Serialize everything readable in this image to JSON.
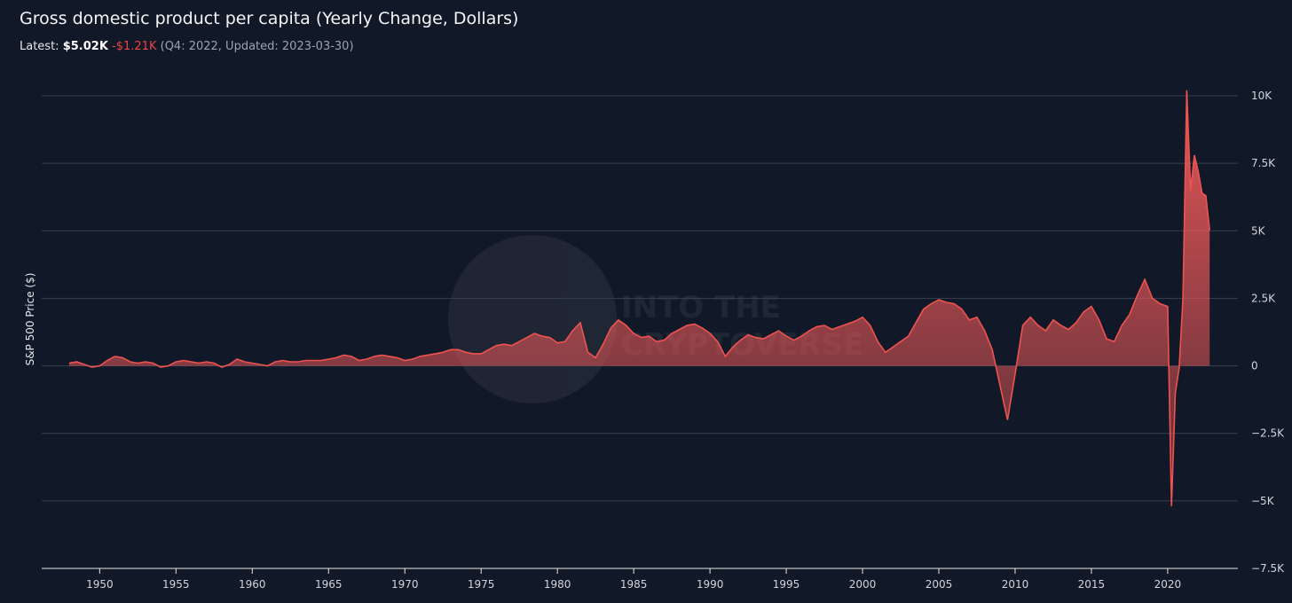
{
  "header": {
    "title": "Gross domestic product per capita (Yearly Change, Dollars)",
    "latest_label": "Latest:",
    "latest_value": "$5.02K",
    "latest_change": "-$1.21K",
    "latest_meta": "(Q4: 2022, Updated: 2023-03-30)"
  },
  "watermark": {
    "line1": "INTO THE",
    "line2": "CRYPTOVERSE"
  },
  "colors": {
    "background": "#111827",
    "series": "#ef5350",
    "grid": "#374151"
  },
  "chart_data": {
    "type": "area",
    "title": "Gross domestic product per capita (Yearly Change, Dollars)",
    "ylabel": "S&P 500 Price ($)",
    "xlabel": "",
    "xlim": [
      1946.2,
      2024.6
    ],
    "ylim": [
      -7500,
      10000
    ],
    "x_ticks": [
      1950,
      1955,
      1960,
      1965,
      1970,
      1975,
      1980,
      1985,
      1990,
      1995,
      2000,
      2005,
      2010,
      2015,
      2020
    ],
    "y_ticks": [
      10000,
      7500,
      5000,
      2500,
      0,
      -2500,
      -5000,
      -7500
    ],
    "y_tick_labels": [
      "10K",
      "7.5K",
      "5K",
      "2.5K",
      "0",
      "−2.5K",
      "−5K",
      "−7.5K"
    ],
    "grid": "horizontal",
    "series": [
      {
        "points": [
          [
            1948.0,
            100
          ],
          [
            1948.5,
            150
          ],
          [
            1949.0,
            50
          ],
          [
            1949.5,
            -50
          ],
          [
            1950.0,
            0
          ],
          [
            1950.5,
            200
          ],
          [
            1951.0,
            350
          ],
          [
            1951.5,
            300
          ],
          [
            1952.0,
            150
          ],
          [
            1952.5,
            100
          ],
          [
            1953.0,
            150
          ],
          [
            1953.5,
            100
          ],
          [
            1954.0,
            -50
          ],
          [
            1954.5,
            0
          ],
          [
            1955.0,
            150
          ],
          [
            1955.5,
            200
          ],
          [
            1956.0,
            150
          ],
          [
            1956.5,
            100
          ],
          [
            1957.0,
            150
          ],
          [
            1957.5,
            100
          ],
          [
            1958.0,
            -50
          ],
          [
            1958.5,
            50
          ],
          [
            1959.0,
            250
          ],
          [
            1959.5,
            150
          ],
          [
            1960.0,
            100
          ],
          [
            1960.5,
            50
          ],
          [
            1961.0,
            0
          ],
          [
            1961.5,
            150
          ],
          [
            1962.0,
            200
          ],
          [
            1962.5,
            150
          ],
          [
            1963.0,
            150
          ],
          [
            1963.5,
            200
          ],
          [
            1964.0,
            200
          ],
          [
            1964.5,
            200
          ],
          [
            1965.0,
            250
          ],
          [
            1965.5,
            300
          ],
          [
            1966.0,
            400
          ],
          [
            1966.5,
            350
          ],
          [
            1967.0,
            200
          ],
          [
            1967.5,
            250
          ],
          [
            1968.0,
            350
          ],
          [
            1968.5,
            400
          ],
          [
            1969.0,
            350
          ],
          [
            1969.5,
            300
          ],
          [
            1970.0,
            200
          ],
          [
            1970.5,
            250
          ],
          [
            1971.0,
            350
          ],
          [
            1971.5,
            400
          ],
          [
            1972.0,
            450
          ],
          [
            1972.5,
            500
          ],
          [
            1973.0,
            600
          ],
          [
            1973.5,
            600
          ],
          [
            1974.0,
            500
          ],
          [
            1974.5,
            450
          ],
          [
            1975.0,
            450
          ],
          [
            1975.5,
            600
          ],
          [
            1976.0,
            750
          ],
          [
            1976.5,
            800
          ],
          [
            1977.0,
            750
          ],
          [
            1977.5,
            900
          ],
          [
            1978.0,
            1050
          ],
          [
            1978.5,
            1200
          ],
          [
            1979.0,
            1100
          ],
          [
            1979.5,
            1050
          ],
          [
            1980.0,
            850
          ],
          [
            1980.5,
            900
          ],
          [
            1981.0,
            1300
          ],
          [
            1981.5,
            1600
          ],
          [
            1982.0,
            500
          ],
          [
            1982.5,
            300
          ],
          [
            1983.0,
            800
          ],
          [
            1983.5,
            1400
          ],
          [
            1984.0,
            1700
          ],
          [
            1984.5,
            1500
          ],
          [
            1985.0,
            1200
          ],
          [
            1985.5,
            1050
          ],
          [
            1986.0,
            1100
          ],
          [
            1986.5,
            900
          ],
          [
            1987.0,
            950
          ],
          [
            1987.5,
            1200
          ],
          [
            1988.0,
            1350
          ],
          [
            1988.5,
            1500
          ],
          [
            1989.0,
            1550
          ],
          [
            1989.5,
            1400
          ],
          [
            1990.0,
            1200
          ],
          [
            1990.5,
            900
          ],
          [
            1991.0,
            350
          ],
          [
            1991.5,
            700
          ],
          [
            1992.0,
            950
          ],
          [
            1992.5,
            1150
          ],
          [
            1993.0,
            1050
          ],
          [
            1993.5,
            1000
          ],
          [
            1994.0,
            1150
          ],
          [
            1994.5,
            1300
          ],
          [
            1995.0,
            1100
          ],
          [
            1995.5,
            950
          ],
          [
            1996.0,
            1100
          ],
          [
            1996.5,
            1300
          ],
          [
            1997.0,
            1450
          ],
          [
            1997.5,
            1500
          ],
          [
            1998.0,
            1350
          ],
          [
            1998.5,
            1450
          ],
          [
            1999.0,
            1550
          ],
          [
            1999.5,
            1650
          ],
          [
            2000.0,
            1800
          ],
          [
            2000.5,
            1500
          ],
          [
            2001.0,
            900
          ],
          [
            2001.5,
            500
          ],
          [
            2002.0,
            700
          ],
          [
            2002.5,
            900
          ],
          [
            2003.0,
            1100
          ],
          [
            2003.5,
            1600
          ],
          [
            2004.0,
            2100
          ],
          [
            2004.5,
            2300
          ],
          [
            2005.0,
            2450
          ],
          [
            2005.5,
            2350
          ],
          [
            2006.0,
            2300
          ],
          [
            2006.5,
            2100
          ],
          [
            2007.0,
            1700
          ],
          [
            2007.5,
            1800
          ],
          [
            2008.0,
            1300
          ],
          [
            2008.5,
            600
          ],
          [
            2009.0,
            -700
          ],
          [
            2009.5,
            -2000
          ],
          [
            2010.0,
            -300
          ],
          [
            2010.5,
            1500
          ],
          [
            2011.0,
            1800
          ],
          [
            2011.5,
            1500
          ],
          [
            2012.0,
            1300
          ],
          [
            2012.5,
            1700
          ],
          [
            2013.0,
            1500
          ],
          [
            2013.5,
            1350
          ],
          [
            2014.0,
            1600
          ],
          [
            2014.5,
            2000
          ],
          [
            2015.0,
            2200
          ],
          [
            2015.5,
            1700
          ],
          [
            2016.0,
            1000
          ],
          [
            2016.5,
            900
          ],
          [
            2017.0,
            1500
          ],
          [
            2017.5,
            1900
          ],
          [
            2018.0,
            2600
          ],
          [
            2018.5,
            3200
          ],
          [
            2019.0,
            2500
          ],
          [
            2019.5,
            2300
          ],
          [
            2020.0,
            2200
          ],
          [
            2020.25,
            -5200
          ],
          [
            2020.5,
            -1000
          ],
          [
            2020.75,
            -100
          ],
          [
            2021.0,
            2500
          ],
          [
            2021.25,
            10200
          ],
          [
            2021.5,
            6500
          ],
          [
            2021.75,
            7800
          ],
          [
            2022.0,
            7200
          ],
          [
            2022.25,
            6400
          ],
          [
            2022.5,
            6300
          ],
          [
            2022.75,
            5020
          ]
        ]
      }
    ]
  }
}
